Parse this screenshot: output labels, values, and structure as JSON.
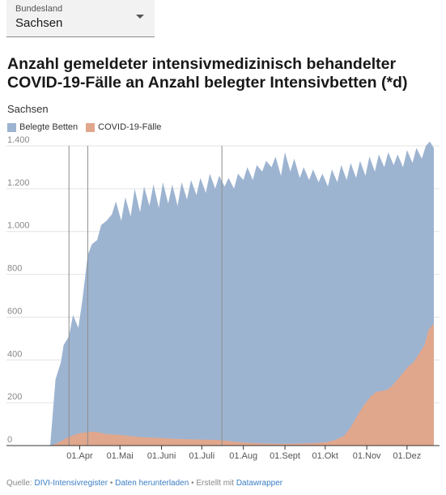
{
  "selector": {
    "label": "Bundesland",
    "value": "Sachsen"
  },
  "colors": {
    "belegte_betten": "#9db4d1",
    "covid_faelle": "#e0a78d",
    "grid": "#e3e3e3",
    "event_line": "#8c8c8c",
    "axis": "#333333",
    "tick_text": "#888888",
    "link": "#3a7dc4"
  },
  "footer": {
    "source_prefix": "Quelle: ",
    "source_link": "DIVI-Intensivregister",
    "sep1": " • ",
    "download_link": "Daten herunterladen",
    "sep2": " • Erstellt mit ",
    "datawrapper_link": "Datawrapper"
  },
  "chart_data": {
    "type": "area",
    "title": "Anzahl gemeldeter intensivmedizinisch behandelter COVID-19-Fälle an Anzahl belegter Intensivbetten (*d)",
    "subtitle": "Sachsen",
    "legend_position": "top-left",
    "grid": true,
    "ylim": [
      0,
      1400
    ],
    "y_ticks": [
      0,
      200,
      400,
      600,
      800,
      1000,
      1200,
      1400
    ],
    "y_tick_labels": [
      "0",
      "200",
      "400",
      "600",
      "800",
      "1.000",
      "1.200",
      "1.400"
    ],
    "x_range": [
      "2020-03-10",
      "2020-12-21"
    ],
    "x_ticks": [
      "2020-04-01",
      "2020-05-01",
      "2020-06-01",
      "2020-07-01",
      "2020-08-01",
      "2020-09-01",
      "2020-10-01",
      "2020-11-01",
      "2020-12-01"
    ],
    "x_tick_labels": [
      "01.Apr",
      "01.Mai",
      "01.Juni",
      "01.Juli",
      "01.Aug",
      "01.Sept",
      "01.Okt",
      "01.Nov",
      "01.Dez"
    ],
    "vertical_markers": [
      "2020-03-24",
      "2020-04-07",
      "2020-07-16"
    ],
    "series": [
      {
        "name": "Belegte Betten",
        "x": [
          "2020-03-10",
          "2020-03-14",
          "2020-03-18",
          "2020-03-20",
          "2020-03-24",
          "2020-03-27",
          "2020-03-31",
          "2020-04-03",
          "2020-04-07",
          "2020-04-10",
          "2020-04-14",
          "2020-04-17",
          "2020-04-21",
          "2020-04-25",
          "2020-04-28",
          "2020-05-02",
          "2020-05-05",
          "2020-05-09",
          "2020-05-12",
          "2020-05-16",
          "2020-05-19",
          "2020-05-23",
          "2020-05-26",
          "2020-05-30",
          "2020-06-02",
          "2020-06-06",
          "2020-06-09",
          "2020-06-13",
          "2020-06-16",
          "2020-06-20",
          "2020-06-23",
          "2020-06-27",
          "2020-06-30",
          "2020-07-04",
          "2020-07-07",
          "2020-07-11",
          "2020-07-14",
          "2020-07-18",
          "2020-07-21",
          "2020-07-25",
          "2020-07-28",
          "2020-08-01",
          "2020-08-04",
          "2020-08-08",
          "2020-08-11",
          "2020-08-15",
          "2020-08-18",
          "2020-08-22",
          "2020-08-25",
          "2020-08-29",
          "2020-09-01",
          "2020-09-05",
          "2020-09-08",
          "2020-09-12",
          "2020-09-15",
          "2020-09-19",
          "2020-09-22",
          "2020-09-26",
          "2020-09-29",
          "2020-10-03",
          "2020-10-06",
          "2020-10-10",
          "2020-10-13",
          "2020-10-17",
          "2020-10-20",
          "2020-10-24",
          "2020-10-27",
          "2020-10-31",
          "2020-11-03",
          "2020-11-07",
          "2020-11-10",
          "2020-11-14",
          "2020-11-17",
          "2020-11-21",
          "2020-11-24",
          "2020-11-28",
          "2020-12-01",
          "2020-12-05",
          "2020-12-08",
          "2020-12-12",
          "2020-12-15",
          "2020-12-18",
          "2020-12-21"
        ],
        "values": [
          0,
          310,
          390,
          470,
          510,
          610,
          550,
          680,
          890,
          940,
          960,
          1030,
          1050,
          1080,
          1140,
          1050,
          1160,
          1070,
          1200,
          1090,
          1210,
          1120,
          1220,
          1110,
          1230,
          1130,
          1220,
          1120,
          1230,
          1150,
          1240,
          1170,
          1250,
          1180,
          1270,
          1200,
          1260,
          1210,
          1250,
          1200,
          1270,
          1240,
          1300,
          1240,
          1310,
          1280,
          1330,
          1300,
          1350,
          1260,
          1370,
          1280,
          1340,
          1250,
          1300,
          1240,
          1290,
          1230,
          1270,
          1210,
          1290,
          1230,
          1310,
          1240,
          1320,
          1250,
          1330,
          1260,
          1350,
          1280,
          1360,
          1300,
          1370,
          1310,
          1360,
          1300,
          1380,
          1320,
          1390,
          1340,
          1400,
          1420,
          1390
        ]
      },
      {
        "name": "COVID-19-Fälle",
        "x": [
          "2020-03-10",
          "2020-03-14",
          "2020-03-18",
          "2020-03-22",
          "2020-03-26",
          "2020-03-30",
          "2020-04-03",
          "2020-04-07",
          "2020-04-11",
          "2020-04-15",
          "2020-04-20",
          "2020-04-25",
          "2020-05-01",
          "2020-05-08",
          "2020-05-15",
          "2020-05-22",
          "2020-06-01",
          "2020-06-10",
          "2020-06-20",
          "2020-07-01",
          "2020-07-10",
          "2020-07-16",
          "2020-07-20",
          "2020-08-01",
          "2020-08-15",
          "2020-09-01",
          "2020-09-15",
          "2020-09-25",
          "2020-10-01",
          "2020-10-08",
          "2020-10-15",
          "2020-10-20",
          "2020-10-25",
          "2020-10-30",
          "2020-11-04",
          "2020-11-08",
          "2020-11-12",
          "2020-11-16",
          "2020-11-20",
          "2020-11-24",
          "2020-11-28",
          "2020-12-02",
          "2020-12-06",
          "2020-12-10",
          "2020-12-14",
          "2020-12-17",
          "2020-12-21"
        ],
        "values": [
          0,
          8,
          20,
          35,
          45,
          55,
          60,
          62,
          65,
          62,
          55,
          52,
          50,
          45,
          40,
          38,
          35,
          32,
          30,
          28,
          27,
          25,
          22,
          14,
          10,
          8,
          10,
          12,
          15,
          25,
          45,
          85,
          140,
          190,
          230,
          250,
          255,
          260,
          280,
          310,
          340,
          370,
          390,
          430,
          470,
          540,
          570
        ]
      }
    ]
  }
}
